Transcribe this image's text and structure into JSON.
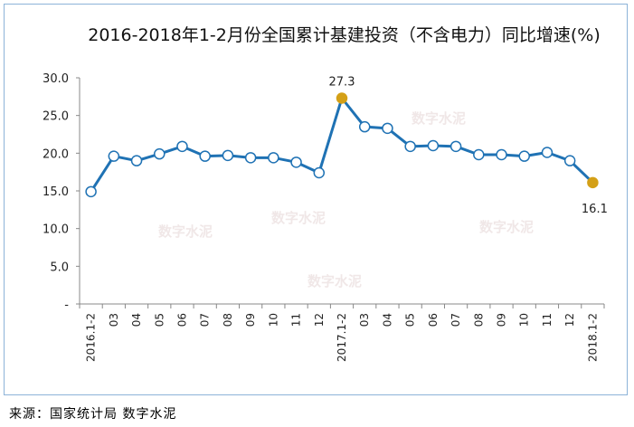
{
  "chart_data": {
    "type": "line",
    "title": "2016-2018年1-2月份全国累计基建投资（不含电力）同比增速(%)",
    "categories": [
      "2016.1-2",
      "03",
      "04",
      "05",
      "06",
      "07",
      "08",
      "09",
      "10",
      "11",
      "12",
      "2017.1-2",
      "03",
      "04",
      "05",
      "06",
      "07",
      "08",
      "09",
      "10",
      "11",
      "12",
      "2018.1-2"
    ],
    "values": [
      14.9,
      19.6,
      19.0,
      19.9,
      20.9,
      19.6,
      19.7,
      19.4,
      19.4,
      18.8,
      17.4,
      27.3,
      23.5,
      23.3,
      20.9,
      21.0,
      20.9,
      19.8,
      19.8,
      19.6,
      20.1,
      19.0,
      16.1
    ],
    "yticks": [
      "30.0",
      "25.0",
      "20.0",
      "15.0",
      "10.0",
      "5.0",
      "-"
    ],
    "ylim": [
      0,
      30
    ],
    "highlight_indices": [
      11,
      22
    ],
    "data_labels": [
      {
        "index": 11,
        "text": "27.3"
      },
      {
        "index": 22,
        "text": "16.1"
      }
    ],
    "grid": false,
    "colors": {
      "line": "#1f72b4",
      "highlight": "#d4a017",
      "marker_fill": "#ffffff"
    }
  },
  "source": "来源：国家统计局  数字水泥",
  "watermark": "数字水泥"
}
